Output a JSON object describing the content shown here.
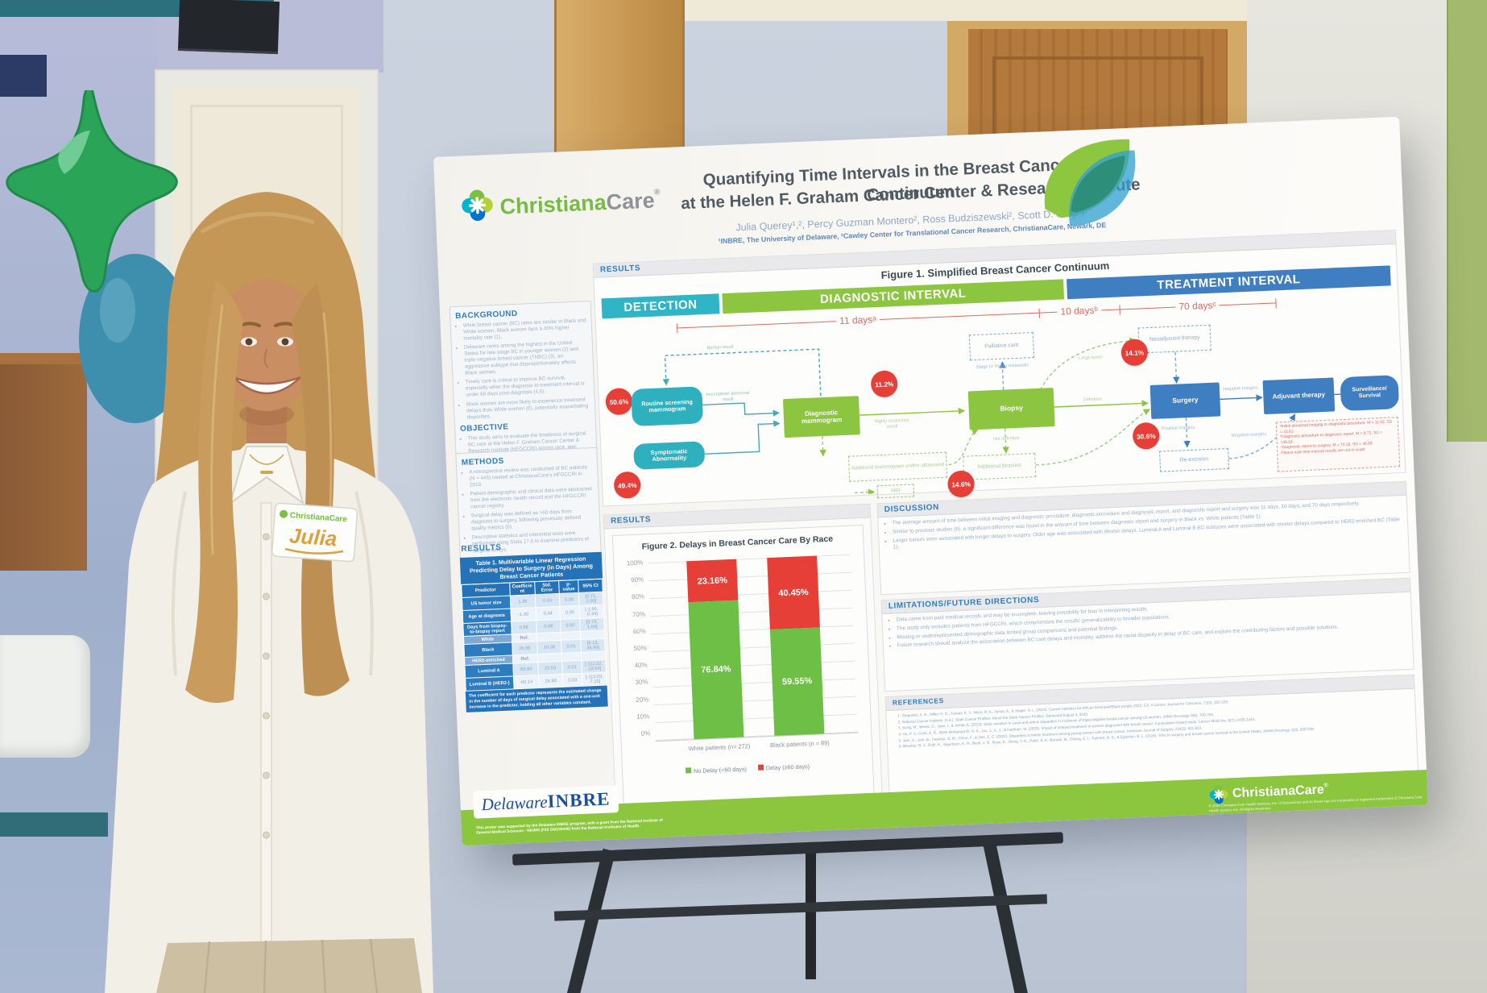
{
  "poster": {
    "logo": {
      "brand_green": "Christiana",
      "brand_grey": "Care",
      "reg": "®"
    },
    "title1": "Quantifying Time Intervals in the Breast Cancer Care Continuum",
    "title2": "at the Helen F. Graham Cancer Center & Research Institute",
    "authors": "Julia Querey¹,², Percy Guzman Montero², Ross Budziszewski², Scott D. Siegel²",
    "affiliations": "¹INBRE, The University of Delaware, ²Cawley Center for Translational Cancer Research, ChristianaCare, Newark, DE",
    "background": {
      "heading": "BACKGROUND",
      "bullets": [
        "While breast cancer (BC) rates are similar in Black and White women, Black women face a 40% higher mortality rate (1).",
        "Delaware ranks among the highest in the United States for late-stage BC in younger women (2) and triple-negative breast cancer (TNBC) (3), an aggressive subtype that disproportionately affects Black women.",
        "Timely care is critical to improve BC survival, especially when the diagnosis-to-treatment interval is under 60 days post-diagnosis (4,5).",
        "Black women are more likely to experience treatment delays than White women (6), potentially exacerbating disparities."
      ]
    },
    "objective": {
      "heading": "OBJECTIVE",
      "bullets": [
        "This study aims to evaluate the timeliness of surgical BC care at the Helen F. Graham Cancer Center & Research Institute (HFGCCRI) across race, age, tumor size, and BC subtype."
      ]
    },
    "methods": {
      "heading": "METHODS",
      "bullets": [
        "A retrospective review was conducted of BC patients (N = 445) treated at ChristianaCare's HFGCCRI in 2019.",
        "Patient demographic and clinical data were abstracted from the electronic health record and the HFGCCRI cancer registry.",
        "Surgical delay was defined as >60 days from diagnosis to surgery, following previously defined quality metrics (6).",
        "Descriptive statistics and inferential tests were performed using Stata 17.0 to examine predictors of surgical delays."
      ]
    },
    "results_label": "RESULTS",
    "table1": {
      "title": "Table 1. Multivariable Linear Regression Predicting Delay to Surgery (in Days) Among Breast Cancer Patients",
      "headers": [
        "Predictor",
        "Coefficient",
        "Std. Error",
        "p-value",
        "95% CI"
      ],
      "rows": [
        {
          "predictor": "US tumor size",
          "coefficient": "1.36",
          "std_error": "0.33",
          "p_value": "0.00",
          "ci": "[0.71, 2.00]"
        },
        {
          "predictor": "Age at diagnosis",
          "coefficient": "-1.00",
          "std_error": "0.34",
          "p_value": "0.00",
          "ci": "[-1.66, -0.34]"
        },
        {
          "predictor": "Days from biopsy-to-biopsy report",
          "coefficient": "0.88",
          "std_error": "0.08",
          "p_value": "0.00",
          "ci": "[0.73, 1.04]"
        },
        {
          "predictor": "White",
          "coefficient": "Ref.",
          "std_error": "",
          "p_value": "",
          "ci": ""
        },
        {
          "predictor": "Black",
          "coefficient": "26.56",
          "std_error": "10.38",
          "p_value": "0.01",
          "ci": "[6.13, 46.99]"
        },
        {
          "predictor": "HER2-enriched",
          "coefficient": "Ref.",
          "std_error": "",
          "p_value": "",
          "ci": ""
        },
        {
          "predictor": "Luminal A",
          "coefficient": "-65.83",
          "std_error": "23.53",
          "p_value": "0.01",
          "ci": "[-112.02, -19.54]"
        },
        {
          "predictor": "Luminal B (HER2-)",
          "coefficient": "-60.14",
          "std_error": "26.89",
          "p_value": "0.03",
          "ci": "[-113.03, -7.25]"
        }
      ],
      "footnote": "The coefficient for each predictor represents the estimated change in the number of days of surgical delay associated with a one-unit increase in the predictor, holding all other variables constant."
    },
    "figure1": {
      "panel_label": "RESULTS",
      "title": "Figure 1. Simplified Breast Cancer Continuum",
      "bands": {
        "detection": "DETECTION",
        "diagnostic": "DIAGNOSTIC INTERVAL",
        "treatment": "TREATMENT INTERVAL"
      },
      "timeline": {
        "a": "11 daysᵃ",
        "b": "10 daysᵇ",
        "c": "70 daysᶜ"
      },
      "nodes": {
        "routine": "Routine screening mammogram",
        "symptomatic": "Symptomatic Abnormality",
        "diagnostic": "Diagnostic mammogram",
        "additional_imaging": "Additional mammogram and/or ultrasound",
        "mri": "MRI",
        "biopsy": "Biopsy",
        "additional_biopsies": "Additional biopsies",
        "palliative": "Palliative care",
        "neoadjuvant": "Neoadjuvant therapy",
        "surgery": "Surgery",
        "re_excision": "Re-excision",
        "adjuvant": "Adjuvant therapy",
        "surveillance": "Surveillance/ Survival"
      },
      "badges": {
        "routine": "50.6%",
        "symptomatic": "49.4%",
        "biopsy": "11.2%",
        "neoadjuvant": "14.1%",
        "additional_biopsies": "14.6%",
        "re_excision": "30.6%"
      },
      "labels": {
        "benign": "Benign result",
        "incomplete": "Incomplete/ abnormal result",
        "suspicious": "Highly suspicious result",
        "suspicious2": "Highly suspicious result",
        "stage4": "Stage IV Highly metastatic",
        "large_tumor": "Large tumor",
        "definitive": "Definitive",
        "not_definitive": "Not definitive",
        "positive_margins": "Positive margins",
        "negative_margins": "Negative margins",
        "negative_margins2": "Negative margins"
      },
      "notes": {
        "a": "ᵃInitial abnormal imaging to diagnostic procedure: M = 11.02, SD = 15.61",
        "b": "ᵇDiagnostic procedure to diagnostic report: M = 9.73, SD = 146.24",
        "c": "ᶜDiagnostic report to surgery: M = 70.16, SD = 46.58",
        "scale": "Please note time interval results are not to scale"
      }
    },
    "figure2": {
      "panel_label": "RESULTS",
      "title": "Figure 2. Delays in Breast Cancer Care By Race",
      "y_ticks": [
        "100%",
        "90%",
        "80%",
        "70%",
        "60%",
        "50%",
        "40%",
        "30%",
        "20%",
        "10%",
        "0%"
      ],
      "bars": [
        {
          "label": "White patients (n= 272)",
          "delay": "23.16%",
          "no_delay": "76.84%"
        },
        {
          "label": "Black patients (n = 89)",
          "delay": "40.45%",
          "no_delay": "59.55%"
        }
      ],
      "legend": {
        "no_delay": "No Delay (<60 days)",
        "delay": "Delay (≥60 days)"
      }
    },
    "discussion": {
      "heading": "DISCUSSION",
      "bullets": [
        "The average amount of time between initial imaging and diagnostic procedure, diagnostic procedure and diagnostic report, and diagnostic report and surgery was 11 days, 10 days, and 70 days respectively.",
        "Similar to previous studies (6), a significant difference was found in the amount of time between diagnostic report and surgery in Black vs. White patients (Table 1).",
        "Larger tumors were associated with longer delays to surgery. Older age was associated with shorter delays. Luminal A and Luminal B BC subtypes were associated with shorter delays compared to HER2-enriched BC (Table 1)."
      ]
    },
    "limitations": {
      "heading": "LIMITATIONS/FUTURE DIRECTIONS",
      "bullets": [
        "Data came from past medical records and may be incomplete, leaving possibility for bias in interpreting results.",
        "The study only includes patients from HFGCCRI, which compromises the results' generalizability to broader populations.",
        "Missing or underrepresented demographic data limited group comparisons and potential findings.",
        "Future research should analyze the association between BC care delays and mortality, address the racial disparity in delay of BC care, and explore the contributing factors and possible solutions."
      ]
    },
    "references": {
      "heading": "REFERENCES",
      "items": [
        "Giaquinto, A. N., Miller, K. D., Tossas, K. Y., Winn, R. A., Jemal, A., & Siegel, R. L. (2022). Cancer statistics for African American/Black people 2022. CA: A Cancer Journal for Clinicians, 72(3), 202-229.",
        "National Cancer Institute. (n.d.). State Cancer Profiles: About the State Cancer Profiles. Retrieved August 4, 2025.",
        "Song, M., Wiese, D., Jatoi, I., & Jemal, A. (2023). State variation in racial and ethnic disparities in incidence of triple-negative breast cancer among US women. JAMA Oncology, 9(5), 700-704.",
        "Ho, P. J., Cook, A. R., Binte Mohamed Ri, N. K., Liu, J., Li, J., & Hartman, M. (2020). Impact of delayed treatment in women diagnosed with breast cancer: A population-based study. Cancer Medicine, 9(7), 2435-2444.",
        "Jain, U., Jain, B., Fayanju, O. M., Chino, F., & Dee, E. C. (2022). Disparities in timely treatment among young women with breast cancer. American Journal of Surgery, 224(3), 811-815.",
        "Bleicher, R. J., Ruth, K., Sigurdson, E. R., Beck, J. R., Ross, E., Wong, Y. N., Patel, S. A., Boraas, M., Chang, E. I., Topham, N. S., & Egleston, B. L. (2016). Time to surgery and breast cancer survival in the United States. JAMA Oncology, 2(3), 330-339."
      ]
    },
    "footer": {
      "inbre_word1": "Delaware",
      "inbre_word2": "INBRE",
      "funding": "This poster was supported by the Delaware INBRE program, with a grant from the National Institute of General Medical Sciences - NIGMS (P20 GM103446) from the National Institutes of Health.",
      "brand": "ChristianaCare",
      "reg": "®",
      "copyright": "© 2024 Christiana Care Health Services, Inc. ChristianaCare and its flower logo are trademarks or registered trademarks of Christiana Care Health System, Inc. All Rights Reserved."
    }
  },
  "scene": {
    "name_tag": {
      "brand": "ChristianaCare",
      "name": "Julia"
    }
  },
  "colors": {
    "poster_green": "#8cc640",
    "poster_teal": "#2fb0bf",
    "poster_blue": "#3f7fc1",
    "badge_red": "#e63f38",
    "heading_blue": "#2f7ec0",
    "table_blue": "#2472b8",
    "footer_green": "#8cc63f",
    "inbre_blue": "#1b4f9c",
    "balloon_green": "#2aa558"
  },
  "chart_data": {
    "type": "bar",
    "stacked": true,
    "title": "Figure 2. Delays in Breast Cancer Care By Race",
    "categories": [
      "White patients (n= 272)",
      "Black patients (n = 89)"
    ],
    "series": [
      {
        "name": "No Delay (<60 days)",
        "color": "#6dbf45",
        "values": [
          76.84,
          59.55
        ]
      },
      {
        "name": "Delay (≥60 days)",
        "color": "#e63f38",
        "values": [
          23.16,
          40.45
        ]
      }
    ],
    "ylim": [
      0,
      100
    ],
    "ytick_step": 10,
    "ylabel": "",
    "xlabel": "",
    "grid": true,
    "legend_position": "bottom"
  }
}
